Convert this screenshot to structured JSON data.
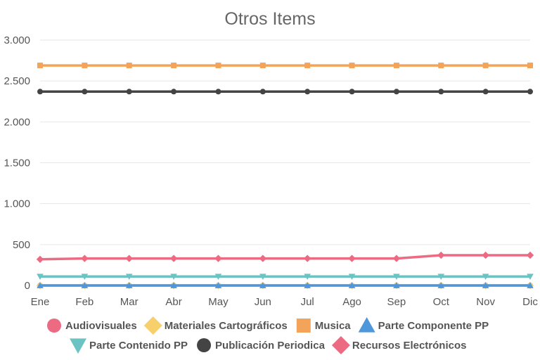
{
  "chart_data": {
    "type": "line",
    "title": "Otros Items",
    "xlabel": "",
    "ylabel": "",
    "categories": [
      "Ene",
      "Feb",
      "Mar",
      "Abr",
      "May",
      "Jun",
      "Jul",
      "Ago",
      "Sep",
      "Oct",
      "Nov",
      "Dic"
    ],
    "ylim": [
      0,
      3000
    ],
    "yticks": [
      0,
      500,
      1000,
      1500,
      2000,
      2500,
      3000
    ],
    "ytick_labels": [
      "0",
      "500",
      "1.000",
      "1.500",
      "2.000",
      "2.500",
      "3.000"
    ],
    "grid": true,
    "legend_position": "bottom",
    "series": [
      {
        "name": "Audiovisuales",
        "color": "#ec6b83",
        "marker": "circle",
        "values": [
          0,
          0,
          0,
          0,
          0,
          0,
          0,
          0,
          0,
          0,
          0,
          0
        ]
      },
      {
        "name": "Materiales Cartográficos",
        "color": "#f7cf6b",
        "marker": "diamond",
        "values": [
          0,
          0,
          0,
          0,
          0,
          0,
          0,
          0,
          0,
          0,
          0,
          0
        ]
      },
      {
        "name": "Musica",
        "color": "#f2a45a",
        "marker": "square",
        "values": [
          2690,
          2690,
          2690,
          2690,
          2690,
          2690,
          2690,
          2690,
          2690,
          2690,
          2690,
          2690
        ]
      },
      {
        "name": "Parte Componente PP",
        "color": "#4f97db",
        "marker": "triangle-up",
        "values": [
          0,
          0,
          0,
          0,
          0,
          0,
          0,
          0,
          0,
          0,
          0,
          0
        ]
      },
      {
        "name": "Parte Contenido PP",
        "color": "#6cc3c3",
        "marker": "triangle-down",
        "values": [
          110,
          110,
          110,
          110,
          110,
          110,
          110,
          110,
          110,
          110,
          110,
          110
        ]
      },
      {
        "name": "Publicación Periodica",
        "color": "#444444",
        "marker": "circle",
        "values": [
          2370,
          2370,
          2370,
          2370,
          2370,
          2370,
          2370,
          2370,
          2370,
          2370,
          2370,
          2370
        ]
      },
      {
        "name": "Recursos Electrónicos",
        "color": "#ec6b83",
        "marker": "diamond",
        "values": [
          320,
          330,
          330,
          330,
          330,
          330,
          330,
          330,
          330,
          370,
          370,
          370
        ]
      }
    ]
  }
}
